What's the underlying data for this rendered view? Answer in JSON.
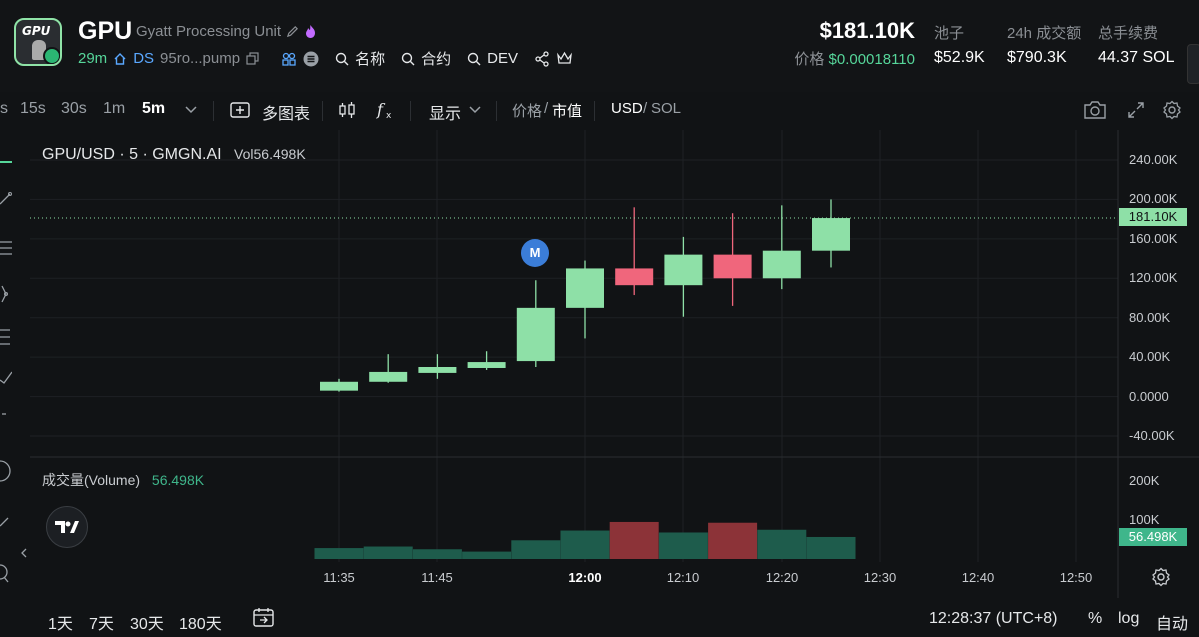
{
  "token": {
    "symbol": "GPU",
    "name": "Gyatt Processing Unit",
    "age": "29m",
    "ds_label": "DS",
    "contract_short": "95ro...pump",
    "links": [
      "名称",
      "合约",
      "DEV"
    ]
  },
  "price": {
    "market_cap": "$181.10K",
    "price_label": "价格",
    "price_value": "$0.00018110"
  },
  "stats": [
    {
      "label": "池子",
      "value": "$52.9K"
    },
    {
      "label": "24h 成交额",
      "value": "$790.3K"
    },
    {
      "label": "总手续费",
      "value": "44.37 SOL"
    }
  ],
  "toolbar": {
    "intervals": [
      "s",
      "15s",
      "30s",
      "1m",
      "5m"
    ],
    "active_interval": "5m",
    "multi_chart": "多图表",
    "display": "显示",
    "price_toggle_a": "价格",
    "price_toggle_sep": "/",
    "price_toggle_b": "市值",
    "currency_a": "USD",
    "currency_sep": "/",
    "currency_b": "SOL"
  },
  "chart_title": "GPU/USD · 5 · GMGN.AI",
  "vol_label": "Vol",
  "vol_value": "56.498K",
  "volume_pane_label": "成交量(Volume)",
  "volume_pane_value": "56.498K",
  "current_price_tag": "181.10K",
  "current_volume_tag": "56.498K",
  "marker_label": "M",
  "colors": {
    "up": "#8ee0a7",
    "down": "#f0667c",
    "vol_up": "#1e5c4c",
    "vol_down": "#8c3338",
    "bg": "#111315"
  },
  "chart_data": {
    "type": "candlestick",
    "x_ticks": [
      "11:35",
      "11:45",
      "12:00",
      "12:10",
      "12:20",
      "12:30",
      "12:40",
      "12:50"
    ],
    "y_ticks": [
      "240.00K",
      "200.00K",
      "160.00K",
      "120.00K",
      "80.00K",
      "40.00K",
      "0.0000",
      "-40.00K"
    ],
    "y_range": [
      -40000,
      240000
    ],
    "volume_ticks": [
      "200K",
      "100K"
    ],
    "candles": [
      {
        "time": "11:35",
        "open": 6000,
        "high": 18000,
        "low": 5000,
        "close": 15000,
        "volume": 28000
      },
      {
        "time": "11:40",
        "open": 15000,
        "high": 43000,
        "low": 14000,
        "close": 25000,
        "volume": 32000
      },
      {
        "time": "11:45",
        "open": 24000,
        "high": 43000,
        "low": 18000,
        "close": 30000,
        "volume": 25000
      },
      {
        "time": "11:50",
        "open": 29000,
        "high": 46000,
        "low": 27000,
        "close": 35000,
        "volume": 19000
      },
      {
        "time": "11:55",
        "open": 36000,
        "high": 118000,
        "low": 30000,
        "close": 90000,
        "volume": 48000
      },
      {
        "time": "12:00",
        "open": 90000,
        "high": 138000,
        "low": 59000,
        "close": 130000,
        "volume": 73000
      },
      {
        "time": "12:05",
        "open": 130000,
        "high": 192000,
        "low": 103000,
        "close": 113000,
        "volume": 95000
      },
      {
        "time": "12:10",
        "open": 113000,
        "high": 162000,
        "low": 81000,
        "close": 144000,
        "volume": 68000
      },
      {
        "time": "12:15",
        "open": 144000,
        "high": 186000,
        "low": 92000,
        "close": 120000,
        "volume": 93000
      },
      {
        "time": "12:20",
        "open": 120000,
        "high": 194000,
        "low": 109000,
        "close": 148000,
        "volume": 75000
      },
      {
        "time": "12:25",
        "open": 148000,
        "high": 200000,
        "low": 131000,
        "close": 181100,
        "volume": 56498
      }
    ]
  },
  "footer": {
    "ranges": [
      "1天",
      "7天",
      "30天",
      "180天"
    ],
    "clock": "12:28:37 (UTC+8)",
    "percent": "%",
    "log": "log",
    "auto": "自动"
  }
}
